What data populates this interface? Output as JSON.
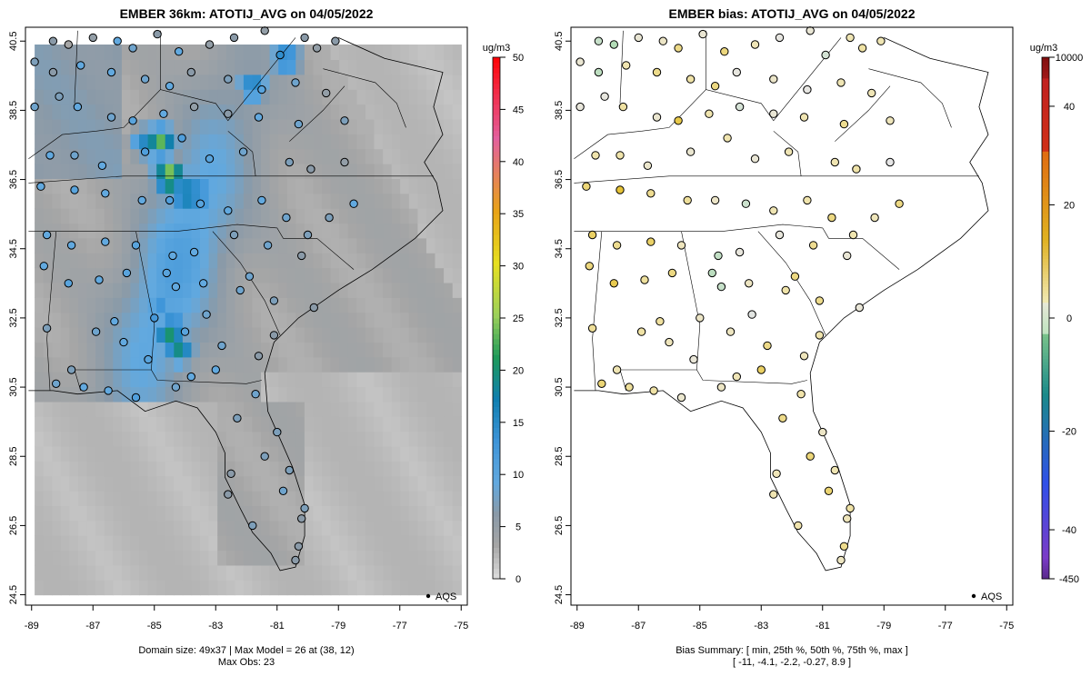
{
  "chart_data": [
    {
      "type": "heatmap",
      "title": "EMBER 36km: ATOTIJ_AVG on 04/05/2022",
      "xlim": [
        -89.2,
        -74.8
      ],
      "ylim": [
        24.2,
        40.9
      ],
      "x_ticks": [
        "-89",
        "-87",
        "-85",
        "-83",
        "-81",
        "-79",
        "-77",
        "-75"
      ],
      "x_tick_values": [
        -89,
        -87,
        -85,
        -83,
        -81,
        -79,
        -77,
        -75
      ],
      "y_ticks": [
        "24.5",
        "26.5",
        "28.5",
        "30.5",
        "32.5",
        "34.5",
        "36.5",
        "38.5",
        "40.5"
      ],
      "y_tick_values": [
        24.5,
        26.5,
        28.5,
        30.5,
        32.5,
        34.5,
        36.5,
        38.5,
        40.5
      ],
      "colorbar": {
        "unit": "ug/m3",
        "range": [
          0,
          50
        ],
        "ticks": [
          "0",
          "5",
          "10",
          "15",
          "20",
          "25",
          "30",
          "35",
          "40",
          "45",
          "50"
        ],
        "tick_values": [
          0,
          5,
          10,
          15,
          20,
          25,
          30,
          35,
          40,
          45,
          50
        ]
      },
      "grid_domain": "49x37",
      "max_model": {
        "value": 26,
        "at": [
          38,
          12
        ]
      },
      "max_obs": 23,
      "footer_line1": "Domain size: 49x37 | Max Model = 26 at (38, 12)",
      "footer_line2": "Max Obs: 23",
      "legend": "AQS",
      "hotspots": [
        {
          "lon": -84.5,
          "lat": 32.0,
          "value": 20
        },
        {
          "lon": -84.2,
          "lat": 31.6,
          "value": 19
        },
        {
          "lon": -84.5,
          "lat": 36.6,
          "value": 26
        },
        {
          "lon": -84.8,
          "lat": 37.6,
          "value": 23
        },
        {
          "lon": -85.3,
          "lat": 37.6,
          "value": 15
        },
        {
          "lon": -84.0,
          "lat": 36.1,
          "value": 19
        },
        {
          "lon": -83.6,
          "lat": 36.1,
          "value": 17
        },
        {
          "lon": -80.7,
          "lat": 40.0,
          "value": 16
        },
        {
          "lon": -81.8,
          "lat": 39.2,
          "value": 16
        },
        {
          "lon": -84.8,
          "lat": 32.8,
          "value": 13
        },
        {
          "lon": -84.4,
          "lat": 32.4,
          "value": 14
        }
      ]
    },
    {
      "type": "scatter",
      "title": "EMBER bias: ATOTIJ_AVG on 04/05/2022",
      "xlim": [
        -89.2,
        -74.8
      ],
      "ylim": [
        24.2,
        40.9
      ],
      "x_ticks": [
        "-89",
        "-87",
        "-85",
        "-83",
        "-81",
        "-79",
        "-77",
        "-75"
      ],
      "x_tick_values": [
        -89,
        -87,
        -85,
        -83,
        -81,
        -79,
        -77,
        -75
      ],
      "y_ticks": [
        "24.5",
        "26.5",
        "28.5",
        "30.5",
        "32.5",
        "34.5",
        "36.5",
        "38.5",
        "40.5"
      ],
      "y_tick_values": [
        24.5,
        26.5,
        28.5,
        30.5,
        32.5,
        34.5,
        36.5,
        38.5,
        40.5
      ],
      "colorbar": {
        "unit": "ug/m3",
        "ticks": [
          "-450",
          "-40",
          "-20",
          "0",
          "20",
          "40",
          "10000"
        ],
        "tick_values": [
          -450,
          -40,
          -20,
          0,
          20,
          40,
          10000
        ]
      },
      "bias_summary": {
        "min": -11,
        "p25": -4.1,
        "p50": -2.2,
        "p75": -0.27,
        "max": 8.9
      },
      "footer_line1": "Bias Summary: [ min, 25th %, 50th %, 75th %, max ]",
      "footer_line2": "[ -11,   -4.1,   -2.2,   -0.27,   8.9 ]",
      "legend": "AQS"
    }
  ],
  "sites": [
    [
      -88.3,
      40.5,
      6
    ],
    [
      -87.8,
      40.4,
      3
    ],
    [
      -87.0,
      40.6,
      5
    ],
    [
      -86.2,
      40.5,
      9
    ],
    [
      -85.7,
      40.3,
      8
    ],
    [
      -84.9,
      40.7,
      6
    ],
    [
      -84.2,
      40.2,
      9
    ],
    [
      -83.2,
      40.4,
      5
    ],
    [
      -82.4,
      40.6,
      6
    ],
    [
      -81.4,
      40.8,
      5
    ],
    [
      -80.9,
      40.1,
      14
    ],
    [
      -80.1,
      40.6,
      6
    ],
    [
      -79.7,
      40.3,
      5
    ],
    [
      -79.1,
      40.5,
      6
    ],
    [
      -88.9,
      39.9,
      7
    ],
    [
      -88.3,
      39.6,
      6
    ],
    [
      -87.4,
      39.8,
      9
    ],
    [
      -86.4,
      39.6,
      9
    ],
    [
      -85.3,
      39.4,
      8
    ],
    [
      -84.5,
      39.2,
      9
    ],
    [
      -83.8,
      39.6,
      6
    ],
    [
      -82.6,
      39.4,
      7
    ],
    [
      -81.5,
      39.1,
      10
    ],
    [
      -80.4,
      39.3,
      8
    ],
    [
      -79.4,
      39.0,
      5
    ],
    [
      -88.9,
      38.6,
      8
    ],
    [
      -88.1,
      38.9,
      7
    ],
    [
      -87.5,
      38.6,
      9
    ],
    [
      -86.4,
      38.3,
      8
    ],
    [
      -85.7,
      38.2,
      10
    ],
    [
      -84.7,
      38.4,
      9
    ],
    [
      -83.7,
      38.6,
      5
    ],
    [
      -82.6,
      38.4,
      6
    ],
    [
      -81.6,
      38.3,
      9
    ],
    [
      -80.3,
      38.1,
      8
    ],
    [
      -78.8,
      38.2,
      7
    ],
    [
      -88.4,
      37.2,
      9
    ],
    [
      -87.6,
      37.2,
      8
    ],
    [
      -86.7,
      36.9,
      9
    ],
    [
      -85.3,
      37.3,
      11
    ],
    [
      -84.1,
      37.7,
      11
    ],
    [
      -83.2,
      37.1,
      10
    ],
    [
      -82.1,
      37.3,
      8
    ],
    [
      -80.6,
      37.0,
      7
    ],
    [
      -79.9,
      36.8,
      6
    ],
    [
      -78.8,
      37.0,
      5
    ],
    [
      -88.7,
      36.3,
      9
    ],
    [
      -87.6,
      36.2,
      10
    ],
    [
      -86.6,
      36.1,
      9
    ],
    [
      -85.4,
      35.9,
      9
    ],
    [
      -84.5,
      35.9,
      11
    ],
    [
      -83.5,
      35.8,
      10
    ],
    [
      -82.6,
      35.6,
      9
    ],
    [
      -81.5,
      35.9,
      9
    ],
    [
      -80.7,
      35.4,
      8
    ],
    [
      -79.3,
      35.4,
      7
    ],
    [
      -78.5,
      35.8,
      9
    ],
    [
      -88.5,
      34.9,
      9
    ],
    [
      -87.7,
      34.6,
      9
    ],
    [
      -86.6,
      34.7,
      9
    ],
    [
      -85.6,
      34.6,
      10
    ],
    [
      -84.4,
      34.3,
      9
    ],
    [
      -83.7,
      34.4,
      9
    ],
    [
      -82.4,
      34.9,
      7
    ],
    [
      -81.3,
      34.6,
      8
    ],
    [
      -80.2,
      34.3,
      6
    ],
    [
      -88.6,
      34.0,
      9
    ],
    [
      -87.8,
      33.5,
      10
    ],
    [
      -86.8,
      33.6,
      9
    ],
    [
      -85.9,
      33.8,
      10
    ],
    [
      -84.6,
      33.8,
      10
    ],
    [
      -84.3,
      33.4,
      9
    ],
    [
      -83.4,
      33.5,
      9
    ],
    [
      -82.2,
      33.3,
      8
    ],
    [
      -81.1,
      33.0,
      7
    ],
    [
      -79.8,
      32.8,
      6
    ],
    [
      -88.5,
      32.2,
      7
    ],
    [
      -86.3,
      32.4,
      9
    ],
    [
      -85.0,
      32.5,
      12
    ],
    [
      -84.0,
      32.1,
      10
    ],
    [
      -83.3,
      32.6,
      8
    ],
    [
      -81.1,
      32.0,
      6
    ],
    [
      -88.2,
      30.6,
      8
    ],
    [
      -87.3,
      30.5,
      9
    ],
    [
      -86.5,
      30.4,
      9
    ],
    [
      -85.6,
      30.2,
      11
    ],
    [
      -84.3,
      30.5,
      8
    ],
    [
      -83.0,
      31.0,
      9
    ],
    [
      -81.7,
      30.3,
      8
    ],
    [
      -82.3,
      29.6,
      7
    ],
    [
      -81.0,
      29.2,
      7
    ],
    [
      -82.5,
      28.0,
      6
    ],
    [
      -81.4,
      28.5,
      7
    ],
    [
      -80.6,
      28.1,
      7
    ],
    [
      -82.6,
      27.4,
      6
    ],
    [
      -80.2,
      26.7,
      6
    ],
    [
      -81.8,
      26.5,
      7
    ],
    [
      -80.3,
      25.9,
      6
    ],
    [
      -80.4,
      25.5,
      6
    ],
    [
      -80.8,
      27.5,
      8
    ],
    [
      -80.1,
      27.0,
      7
    ],
    [
      -81.6,
      31.4,
      6
    ],
    [
      -82.8,
      31.7,
      8
    ],
    [
      -80.0,
      34.9,
      7
    ],
    [
      -81.9,
      33.7,
      8
    ],
    [
      -83.8,
      30.8,
      9
    ],
    [
      -85.2,
      31.3,
      10
    ],
    [
      -86.0,
      31.8,
      9
    ],
    [
      -87.7,
      31.0,
      7
    ],
    [
      -86.9,
      32.1,
      8
    ]
  ]
}
